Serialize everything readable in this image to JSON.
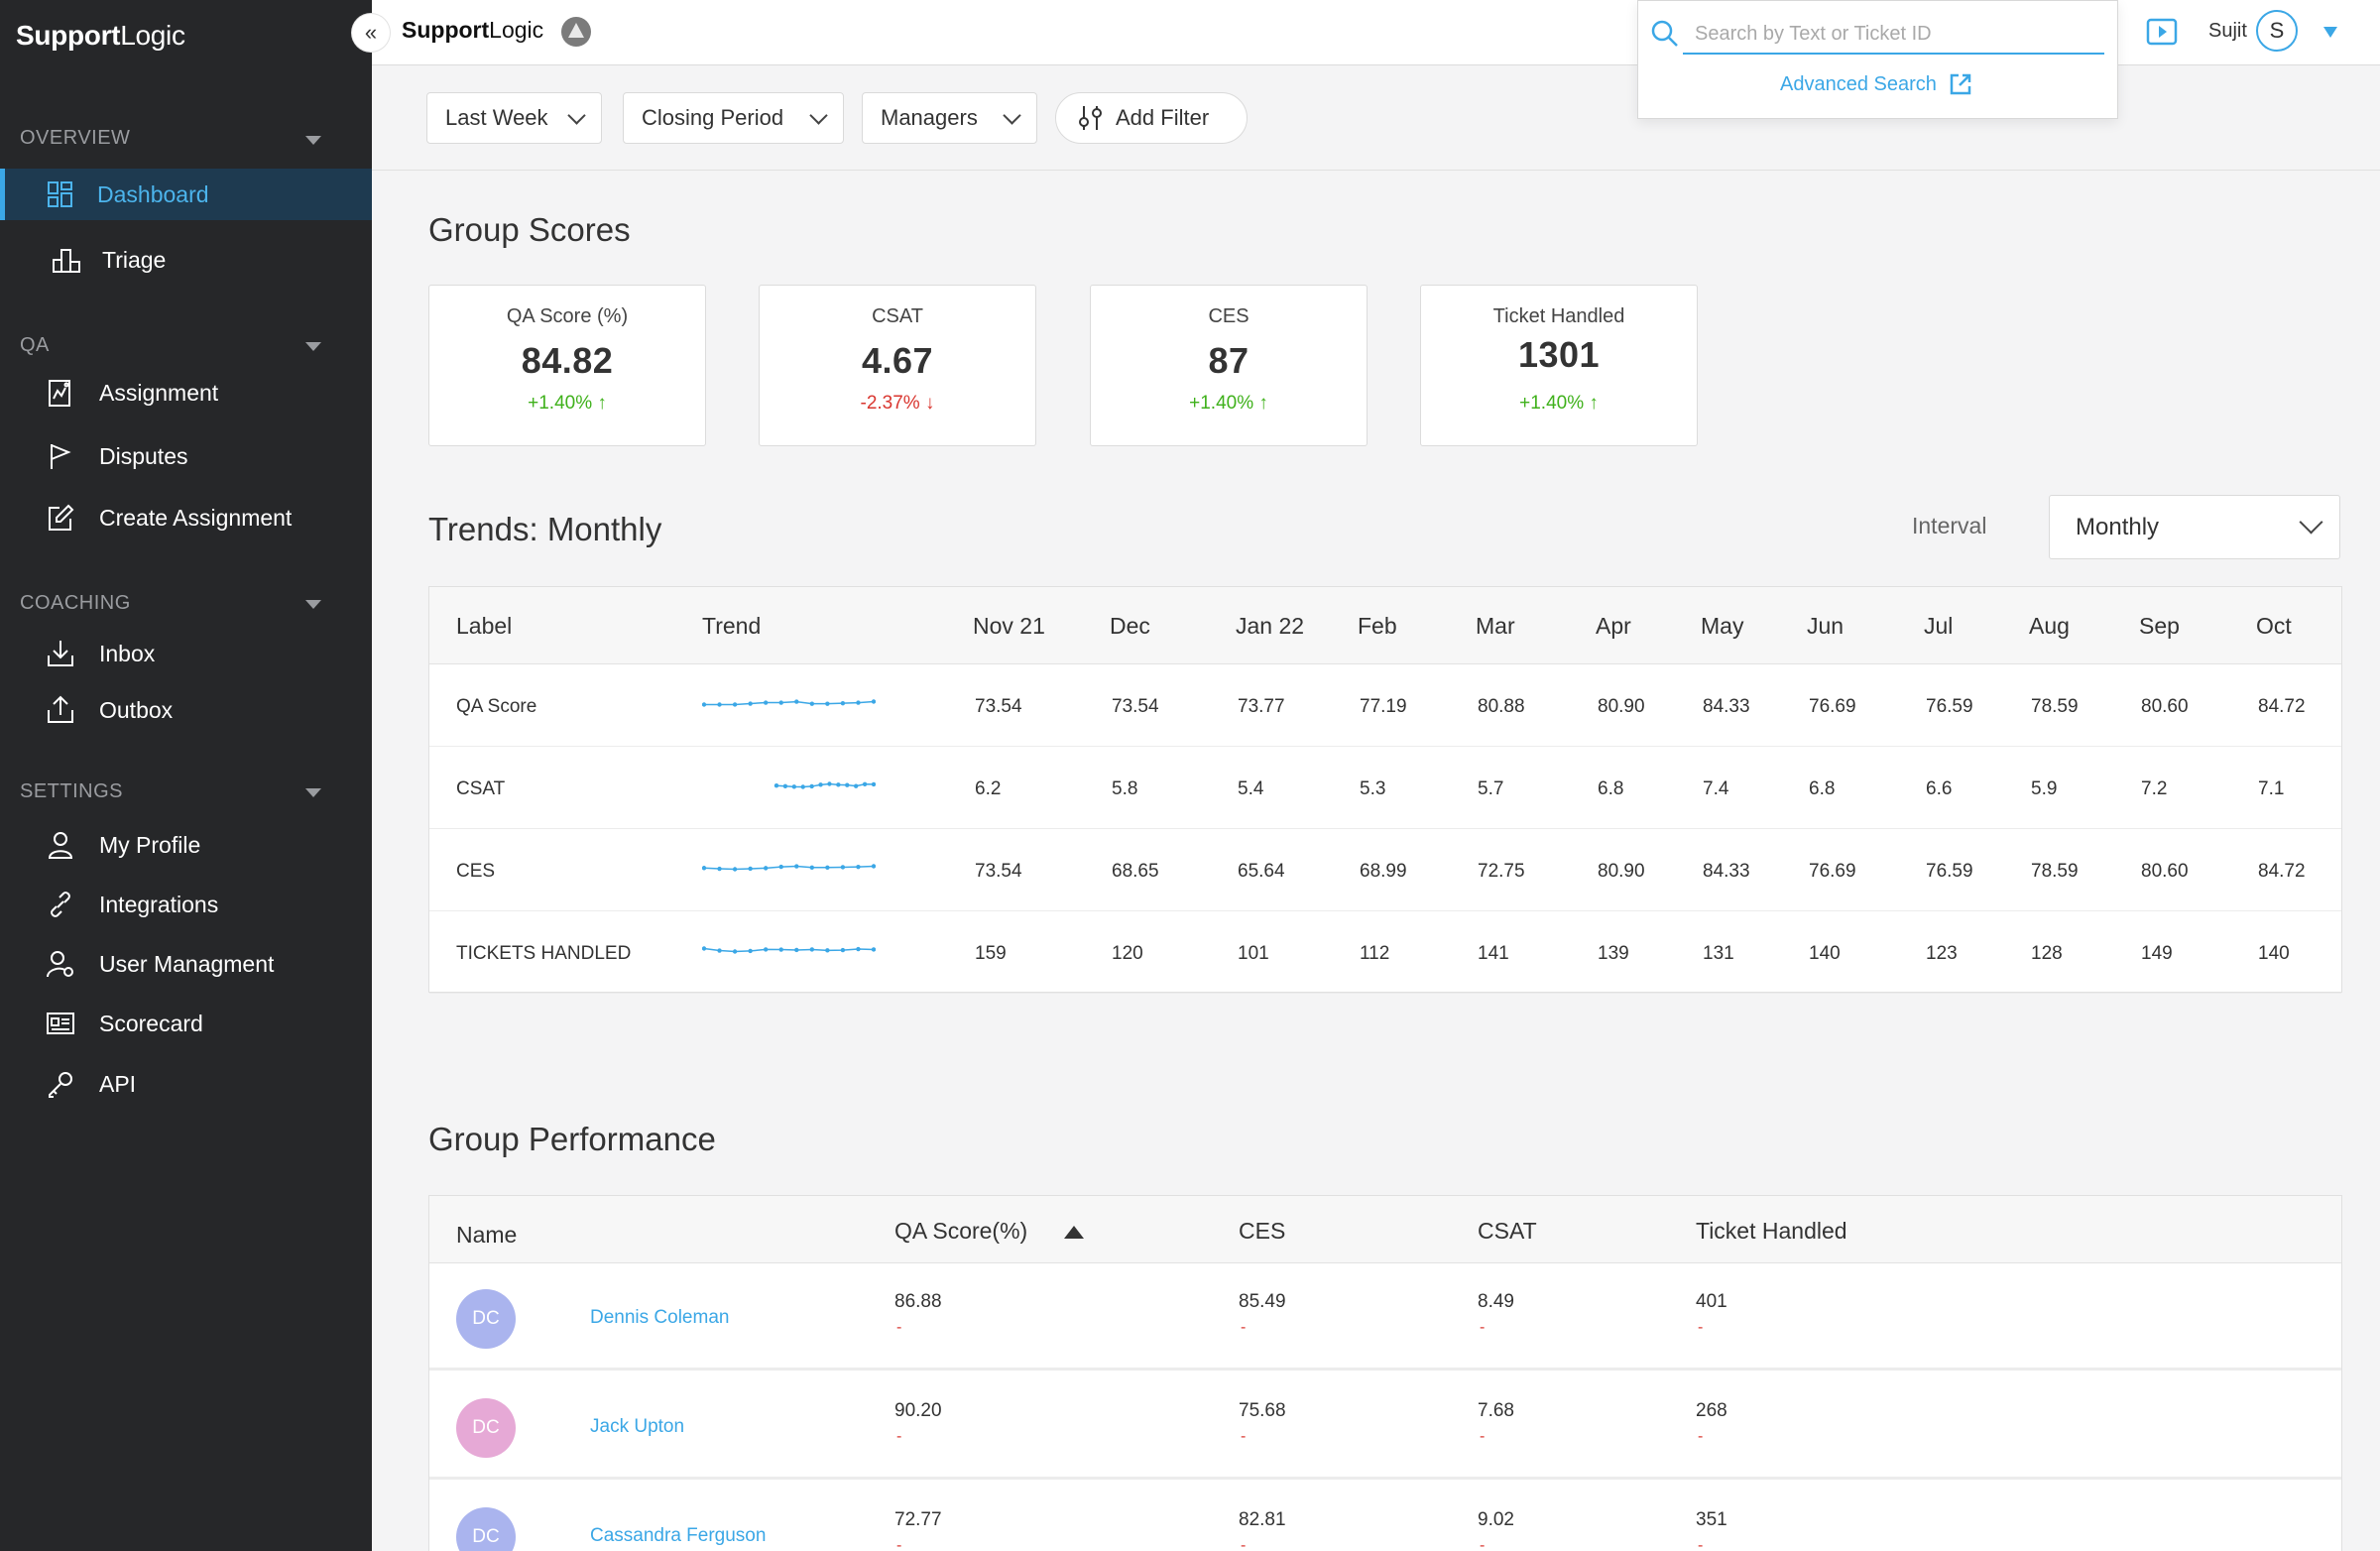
{
  "sidebar": {
    "brand_bold": "Support",
    "brand_rest": "Logic",
    "sections": {
      "overview": "OVERVIEW",
      "qa": "QA",
      "coaching": "COACHING",
      "settings": "SETTINGS"
    },
    "items": {
      "dashboard": "Dashboard",
      "triage": "Triage",
      "assignment": "Assignment",
      "disputes": "Disputes",
      "create_assignment": "Create Assignment",
      "inbox": "Inbox",
      "outbox": "Outbox",
      "my_profile": "My Profile",
      "integrations": "Integrations",
      "user_management": "User Managment",
      "scorecard": "Scorecard",
      "api": "API"
    }
  },
  "topbar": {
    "brand_bold": "Support",
    "brand_rest": "Logic",
    "collapse_glyph": "«",
    "search_placeholder": "Search by Text or Ticket ID",
    "advanced_search": "Advanced Search",
    "user_name": "Sujit",
    "user_initial": "S"
  },
  "filters": {
    "last_week": "Last Week",
    "closing_period": "Closing Period",
    "managers": "Managers",
    "add_filter": "Add Filter"
  },
  "group_scores": {
    "title": "Group Scores",
    "cards": [
      {
        "title": "QA Score (%)",
        "value": "84.82",
        "delta": "+1.40% ↑",
        "trend": "up"
      },
      {
        "title": "CSAT",
        "value": "4.67",
        "delta": "-2.37% ↓",
        "trend": "down"
      },
      {
        "title": "CES",
        "value": "87",
        "delta": "+1.40% ↑",
        "trend": "up"
      },
      {
        "title": "Ticket Handled",
        "value": "1301",
        "delta": "+1.40% ↑",
        "trend": "up"
      }
    ]
  },
  "trends": {
    "title": "Trends: Monthly",
    "interval_label": "Interval",
    "interval_value": "Monthly",
    "columns": [
      "Label",
      "Trend",
      "Nov 21",
      "Dec",
      "Jan 22",
      "Feb",
      "Mar",
      "Apr",
      "May",
      "Jun",
      "Jul",
      "Aug",
      "Sep",
      "Oct"
    ],
    "rows": [
      {
        "label": "QA Score",
        "values": [
          "73.54",
          "73.54",
          "73.77",
          "77.19",
          "80.88",
          "80.90",
          "84.33",
          "76.69",
          "76.59",
          "78.59",
          "80.60",
          "84.72"
        ]
      },
      {
        "label": "CSAT",
        "values": [
          "6.2",
          "5.8",
          "5.4",
          "5.3",
          "5.7",
          "6.8",
          "7.4",
          "6.8",
          "6.6",
          "5.9",
          "7.2",
          "7.1"
        ]
      },
      {
        "label": "CES",
        "values": [
          "73.54",
          "68.65",
          "65.64",
          "68.99",
          "72.75",
          "80.90",
          "84.33",
          "76.69",
          "76.59",
          "78.59",
          "80.60",
          "84.72"
        ]
      },
      {
        "label": "TICKETS HANDLED",
        "values": [
          "159",
          "120",
          "101",
          "112",
          "141",
          "139",
          "131",
          "140",
          "123",
          "128",
          "149",
          "140"
        ]
      }
    ]
  },
  "group_performance": {
    "title": "Group Performance",
    "columns": {
      "name": "Name",
      "qa": "QA Score(%)",
      "ces": "CES",
      "csat": "CSAT",
      "tickets": "Ticket Handled"
    },
    "rows": [
      {
        "initials": "DC",
        "name": "Dennis Coleman",
        "avatar_color": "#aab4ee",
        "qa": "86.88",
        "ces": "85.49",
        "csat": "8.49",
        "tickets": "401",
        "dash": "-"
      },
      {
        "initials": "DC",
        "name": "Jack Upton",
        "avatar_color": "#e6a9d6",
        "qa": "90.20",
        "ces": "75.68",
        "csat": "7.68",
        "tickets": "268",
        "dash": "-"
      },
      {
        "initials": "DC",
        "name": "Cassandra Ferguson",
        "avatar_color": "#aab4ee",
        "qa": "72.77",
        "ces": "82.81",
        "csat": "9.02",
        "tickets": "351",
        "dash": "-"
      }
    ]
  },
  "colors": {
    "accent": "#3ba7e6",
    "sidebar_bg": "#262729",
    "positive": "#3fb11b",
    "negative": "#d9362f"
  }
}
